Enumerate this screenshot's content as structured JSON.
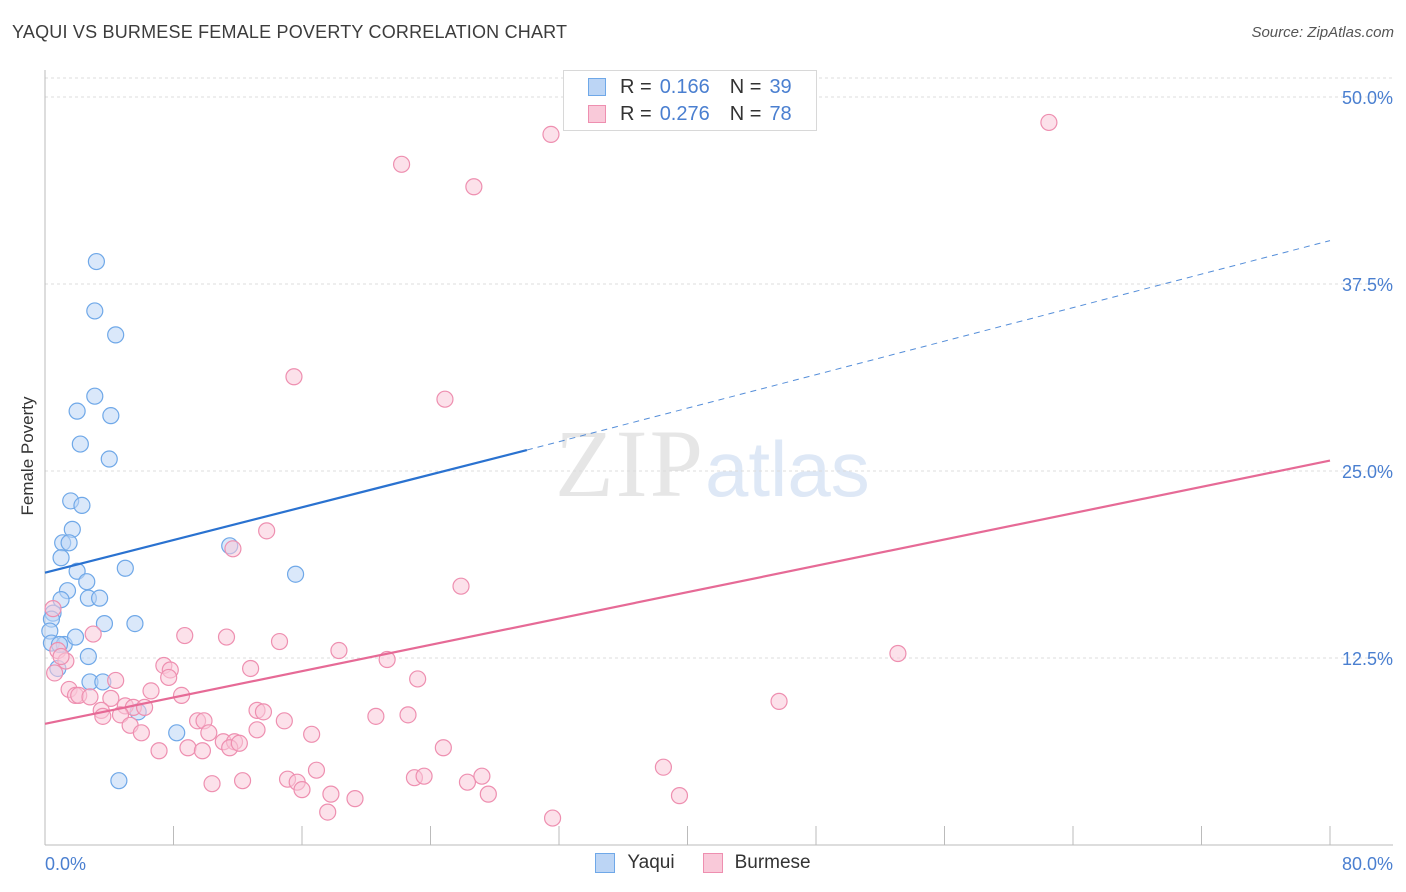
{
  "title": "YAQUI VS BURMESE FEMALE POVERTY CORRELATION CHART",
  "source": "Source: ZipAtlas.com",
  "watermark": {
    "zip": "ZIP",
    "atlas": "atlas"
  },
  "colors": {
    "yaqui": "#6fa8e8",
    "yaqui_fill": "#bcd5f5",
    "yaqui_line": "#2a72d0",
    "burmese": "#ee8fb0",
    "burmese_fill": "#f9c9d9",
    "burmese_line": "#e66a96",
    "tick": "#4a7fd0"
  },
  "legend": {
    "rows": [
      {
        "r_key": "R =",
        "r_val": "0.166",
        "n_key": "N =",
        "n_val": "39"
      },
      {
        "r_key": "R =",
        "r_val": "0.276",
        "n_key": "N =",
        "n_val": "78"
      }
    ],
    "bottom": [
      "Yaqui",
      "Burmese"
    ]
  },
  "chart_data": {
    "type": "scatter",
    "title": "YAQUI VS BURMESE FEMALE POVERTY CORRELATION CHART",
    "xlabel": "",
    "ylabel": "Female Poverty",
    "xlim": [
      0,
      80
    ],
    "ylim": [
      0,
      50
    ],
    "x_tick_labels": [
      "0.0%",
      "80.0%"
    ],
    "y_tick_labels": [
      "12.5%",
      "25.0%",
      "37.5%",
      "50.0%"
    ],
    "y_ticks": [
      12.5,
      25,
      37.5,
      50
    ],
    "grid": true,
    "series": [
      {
        "name": "Yaqui",
        "r": 0.166,
        "n": 39,
        "trend": {
          "x0": 0,
          "y0": 18.2,
          "x1": 30,
          "y1": 26.4,
          "dashed_to_x": 80,
          "dashed_to_y": 40.4
        },
        "points": [
          [
            3.2,
            39.0
          ],
          [
            3.1,
            35.7
          ],
          [
            4.4,
            34.1
          ],
          [
            3.1,
            30.0
          ],
          [
            2.0,
            29.0
          ],
          [
            4.1,
            28.7
          ],
          [
            2.2,
            26.8
          ],
          [
            4.0,
            25.8
          ],
          [
            1.6,
            23.0
          ],
          [
            2.3,
            22.7
          ],
          [
            1.7,
            21.1
          ],
          [
            1.1,
            20.2
          ],
          [
            1.5,
            20.2
          ],
          [
            1.0,
            19.2
          ],
          [
            5.0,
            18.5
          ],
          [
            11.5,
            20.0
          ],
          [
            15.6,
            18.1
          ],
          [
            2.0,
            18.3
          ],
          [
            2.6,
            17.6
          ],
          [
            1.4,
            17.0
          ],
          [
            1.0,
            16.4
          ],
          [
            2.7,
            16.5
          ],
          [
            3.4,
            16.5
          ],
          [
            0.5,
            15.5
          ],
          [
            0.4,
            15.1
          ],
          [
            3.7,
            14.8
          ],
          [
            5.6,
            14.8
          ],
          [
            0.3,
            14.3
          ],
          [
            0.4,
            13.5
          ],
          [
            1.2,
            13.4
          ],
          [
            1.9,
            13.9
          ],
          [
            0.9,
            13.4
          ],
          [
            2.7,
            12.6
          ],
          [
            0.8,
            11.8
          ],
          [
            2.8,
            10.9
          ],
          [
            3.6,
            10.9
          ],
          [
            5.8,
            8.9
          ],
          [
            8.2,
            7.5
          ],
          [
            4.6,
            4.3
          ]
        ]
      },
      {
        "name": "Burmese",
        "r": 0.276,
        "n": 78,
        "trend": {
          "x0": 0,
          "y0": 8.1,
          "x1": 80,
          "y1": 25.7
        },
        "points": [
          [
            31.5,
            47.5
          ],
          [
            62.5,
            48.3
          ],
          [
            22.2,
            45.5
          ],
          [
            26.7,
            44.0
          ],
          [
            15.5,
            31.3
          ],
          [
            24.9,
            29.8
          ],
          [
            13.8,
            21.0
          ],
          [
            11.7,
            19.8
          ],
          [
            25.9,
            17.3
          ],
          [
            0.5,
            15.8
          ],
          [
            3.0,
            14.1
          ],
          [
            8.7,
            14.0
          ],
          [
            11.3,
            13.9
          ],
          [
            14.6,
            13.6
          ],
          [
            18.3,
            13.0
          ],
          [
            21.3,
            12.4
          ],
          [
            53.1,
            12.8
          ],
          [
            0.8,
            13.0
          ],
          [
            1.3,
            12.3
          ],
          [
            7.4,
            12.0
          ],
          [
            7.8,
            11.7
          ],
          [
            12.8,
            11.8
          ],
          [
            4.4,
            11.0
          ],
          [
            7.7,
            11.2
          ],
          [
            23.2,
            11.1
          ],
          [
            1.5,
            10.4
          ],
          [
            6.6,
            10.3
          ],
          [
            8.5,
            10.0
          ],
          [
            1.9,
            10.0
          ],
          [
            2.1,
            10.0
          ],
          [
            2.8,
            9.9
          ],
          [
            4.1,
            9.8
          ],
          [
            5.0,
            9.3
          ],
          [
            5.5,
            9.2
          ],
          [
            6.2,
            9.2
          ],
          [
            3.5,
            9.0
          ],
          [
            13.2,
            9.0
          ],
          [
            13.6,
            8.9
          ],
          [
            45.7,
            9.6
          ],
          [
            20.6,
            8.6
          ],
          [
            22.6,
            8.7
          ],
          [
            4.7,
            8.7
          ],
          [
            3.6,
            8.6
          ],
          [
            9.5,
            8.3
          ],
          [
            9.9,
            8.3
          ],
          [
            14.9,
            8.3
          ],
          [
            5.3,
            8.0
          ],
          [
            6.0,
            7.5
          ],
          [
            10.2,
            7.5
          ],
          [
            13.2,
            7.7
          ],
          [
            16.6,
            7.4
          ],
          [
            11.1,
            6.9
          ],
          [
            11.8,
            6.9
          ],
          [
            11.5,
            6.5
          ],
          [
            12.1,
            6.8
          ],
          [
            8.9,
            6.5
          ],
          [
            9.8,
            6.3
          ],
          [
            7.1,
            6.3
          ],
          [
            24.8,
            6.5
          ],
          [
            16.9,
            5.0
          ],
          [
            15.1,
            4.4
          ],
          [
            15.7,
            4.2
          ],
          [
            23.0,
            4.5
          ],
          [
            23.6,
            4.6
          ],
          [
            26.3,
            4.2
          ],
          [
            27.2,
            4.6
          ],
          [
            38.5,
            5.2
          ],
          [
            10.4,
            4.1
          ],
          [
            12.3,
            4.3
          ],
          [
            16.0,
            3.7
          ],
          [
            17.8,
            3.4
          ],
          [
            19.3,
            3.1
          ],
          [
            27.6,
            3.4
          ],
          [
            39.5,
            3.3
          ],
          [
            17.6,
            2.2
          ],
          [
            31.6,
            1.8
          ],
          [
            0.6,
            11.5
          ],
          [
            1.0,
            12.6
          ]
        ]
      }
    ]
  }
}
